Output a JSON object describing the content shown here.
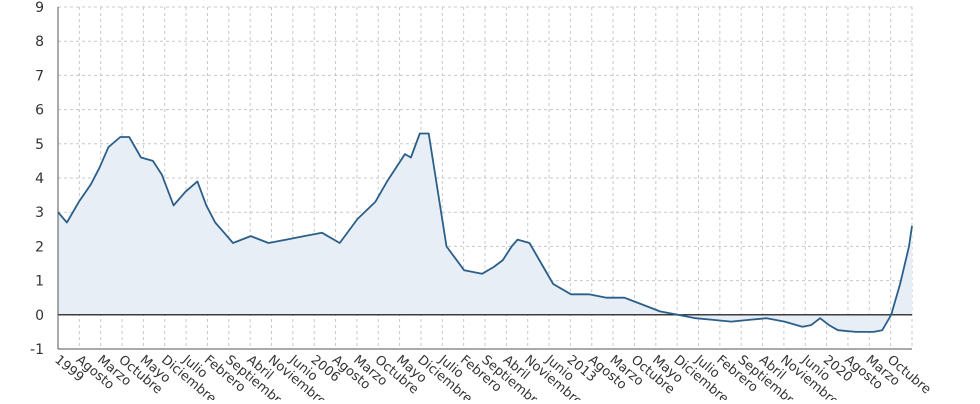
{
  "chart_data": {
    "type": "area",
    "title": "",
    "xlabel": "",
    "ylabel": "",
    "ylim": [
      -1,
      9
    ],
    "yticks": [
      -1,
      0,
      1,
      2,
      3,
      4,
      5,
      6,
      7,
      8,
      9
    ],
    "grid": true,
    "legend": "none",
    "x_start": "1999-01",
    "x_end": "2023-01",
    "xtick_labels": [
      "1999",
      "Agosto",
      "Marzo",
      "Octubre",
      "Mayo",
      "Diciembre",
      "Julio",
      "Febrero",
      "Septiembre",
      "Abril",
      "Noviembre",
      "Junio",
      "2006",
      "Agosto",
      "Marzo",
      "Octubre",
      "Mayo",
      "Diciembre",
      "Julio",
      "Febrero",
      "Septiembre",
      "Abril",
      "Noviembre",
      "Junio",
      "2013",
      "Agosto",
      "Marzo",
      "Octubre",
      "Mayo",
      "Diciembre",
      "Julio",
      "Febrero",
      "Septiembre",
      "Abril",
      "Noviembre",
      "Junio",
      "2020",
      "Agosto",
      "Marzo",
      "Octubre"
    ],
    "series": [
      {
        "x": [
          "1999-01",
          "1999-04",
          "1999-08",
          "1999-12",
          "2000-03",
          "2000-06",
          "2000-10",
          "2001-01",
          "2001-05",
          "2001-09",
          "2001-12",
          "2002-04",
          "2002-08",
          "2002-12",
          "2003-03",
          "2003-06",
          "2003-09",
          "2003-12",
          "2004-06",
          "2004-12",
          "2005-06",
          "2005-12",
          "2006-06",
          "2006-12",
          "2007-06",
          "2007-12",
          "2008-04",
          "2008-07",
          "2008-10",
          "2008-12",
          "2009-03",
          "2009-06",
          "2009-12",
          "2010-06",
          "2010-12",
          "2011-04",
          "2011-07",
          "2011-10",
          "2011-12",
          "2012-04",
          "2012-08",
          "2012-12",
          "2013-06",
          "2013-12",
          "2014-06",
          "2014-12",
          "2015-06",
          "2015-12",
          "2016-06",
          "2016-12",
          "2017-06",
          "2017-12",
          "2018-06",
          "2018-12",
          "2019-06",
          "2019-12",
          "2020-03",
          "2020-06",
          "2020-09",
          "2020-12",
          "2021-06",
          "2021-12",
          "2022-03",
          "2022-06",
          "2022-09",
          "2022-12",
          "2023-01"
        ],
        "values": [
          3.0,
          2.7,
          3.3,
          3.8,
          4.3,
          4.9,
          5.2,
          5.2,
          4.6,
          4.5,
          4.1,
          3.2,
          3.6,
          3.9,
          3.2,
          2.7,
          2.4,
          2.1,
          2.3,
          2.1,
          2.2,
          2.3,
          2.4,
          2.1,
          2.8,
          3.3,
          3.9,
          4.3,
          4.7,
          4.6,
          5.3,
          5.3,
          2.0,
          1.3,
          1.2,
          1.4,
          1.6,
          2.0,
          2.2,
          2.1,
          1.5,
          0.9,
          0.6,
          0.6,
          0.5,
          0.5,
          0.3,
          0.1,
          0.0,
          -0.1,
          -0.15,
          -0.2,
          -0.15,
          -0.1,
          -0.2,
          -0.35,
          -0.3,
          -0.1,
          -0.3,
          -0.45,
          -0.5,
          -0.5,
          -0.45,
          0.0,
          0.9,
          2.0,
          2.6
        ]
      }
    ]
  },
  "colors": {
    "line": "#2b5f8a",
    "area": "#e8eef5",
    "zero_line": "#000000",
    "grid": "#c8c8c8",
    "text": "#333333"
  }
}
